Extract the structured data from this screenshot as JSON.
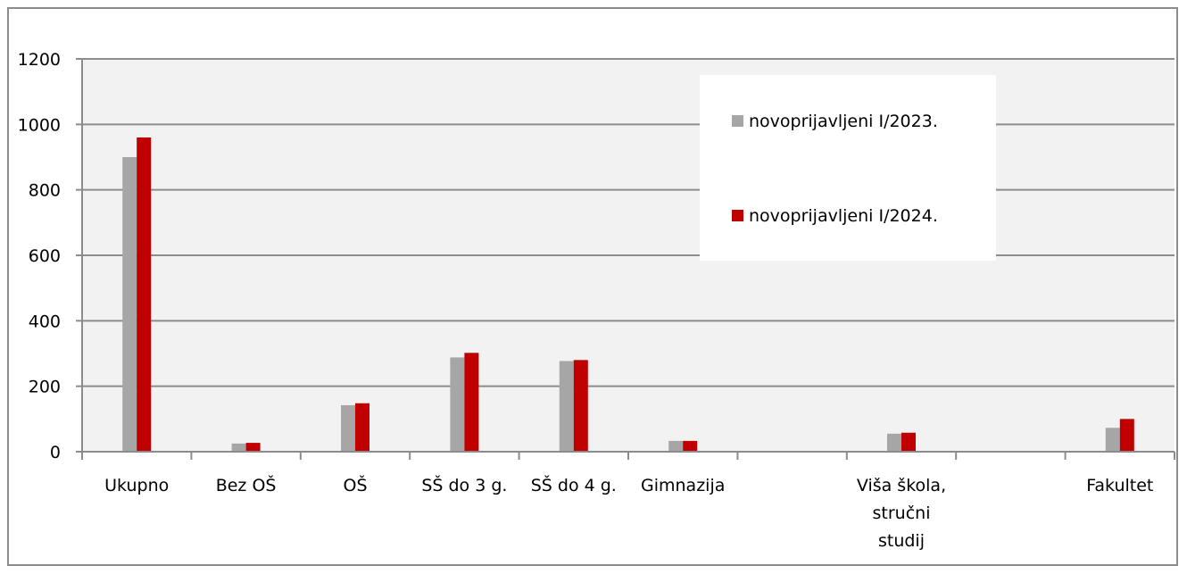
{
  "chart_data": {
    "type": "bar",
    "categories": [
      [
        "Ukupno"
      ],
      [
        "Bez OŠ"
      ],
      [
        "OŠ"
      ],
      [
        "SŠ do 3 g."
      ],
      [
        "SŠ do 4 g."
      ],
      [
        "Gimnazija"
      ],
      [],
      [
        "Viša škola,",
        "stručni",
        "studij"
      ],
      [],
      [
        "Fakultet"
      ]
    ],
    "series": [
      {
        "name": "novoprijavljeni I/2023.",
        "color": "#a6a6a6",
        "values": [
          900,
          25,
          142,
          288,
          277,
          33,
          0,
          55,
          0,
          73
        ]
      },
      {
        "name": "novoprijavljeni I/2024.",
        "color": "#c00000",
        "values": [
          960,
          27,
          148,
          302,
          280,
          33,
          0,
          58,
          0,
          100
        ]
      }
    ],
    "ylim": [
      0,
      1200
    ],
    "yticks": [
      0,
      200,
      400,
      600,
      800,
      1000,
      1200
    ],
    "grid": true,
    "plot_background": "#f2f2f2",
    "legend_position": "top-right"
  }
}
